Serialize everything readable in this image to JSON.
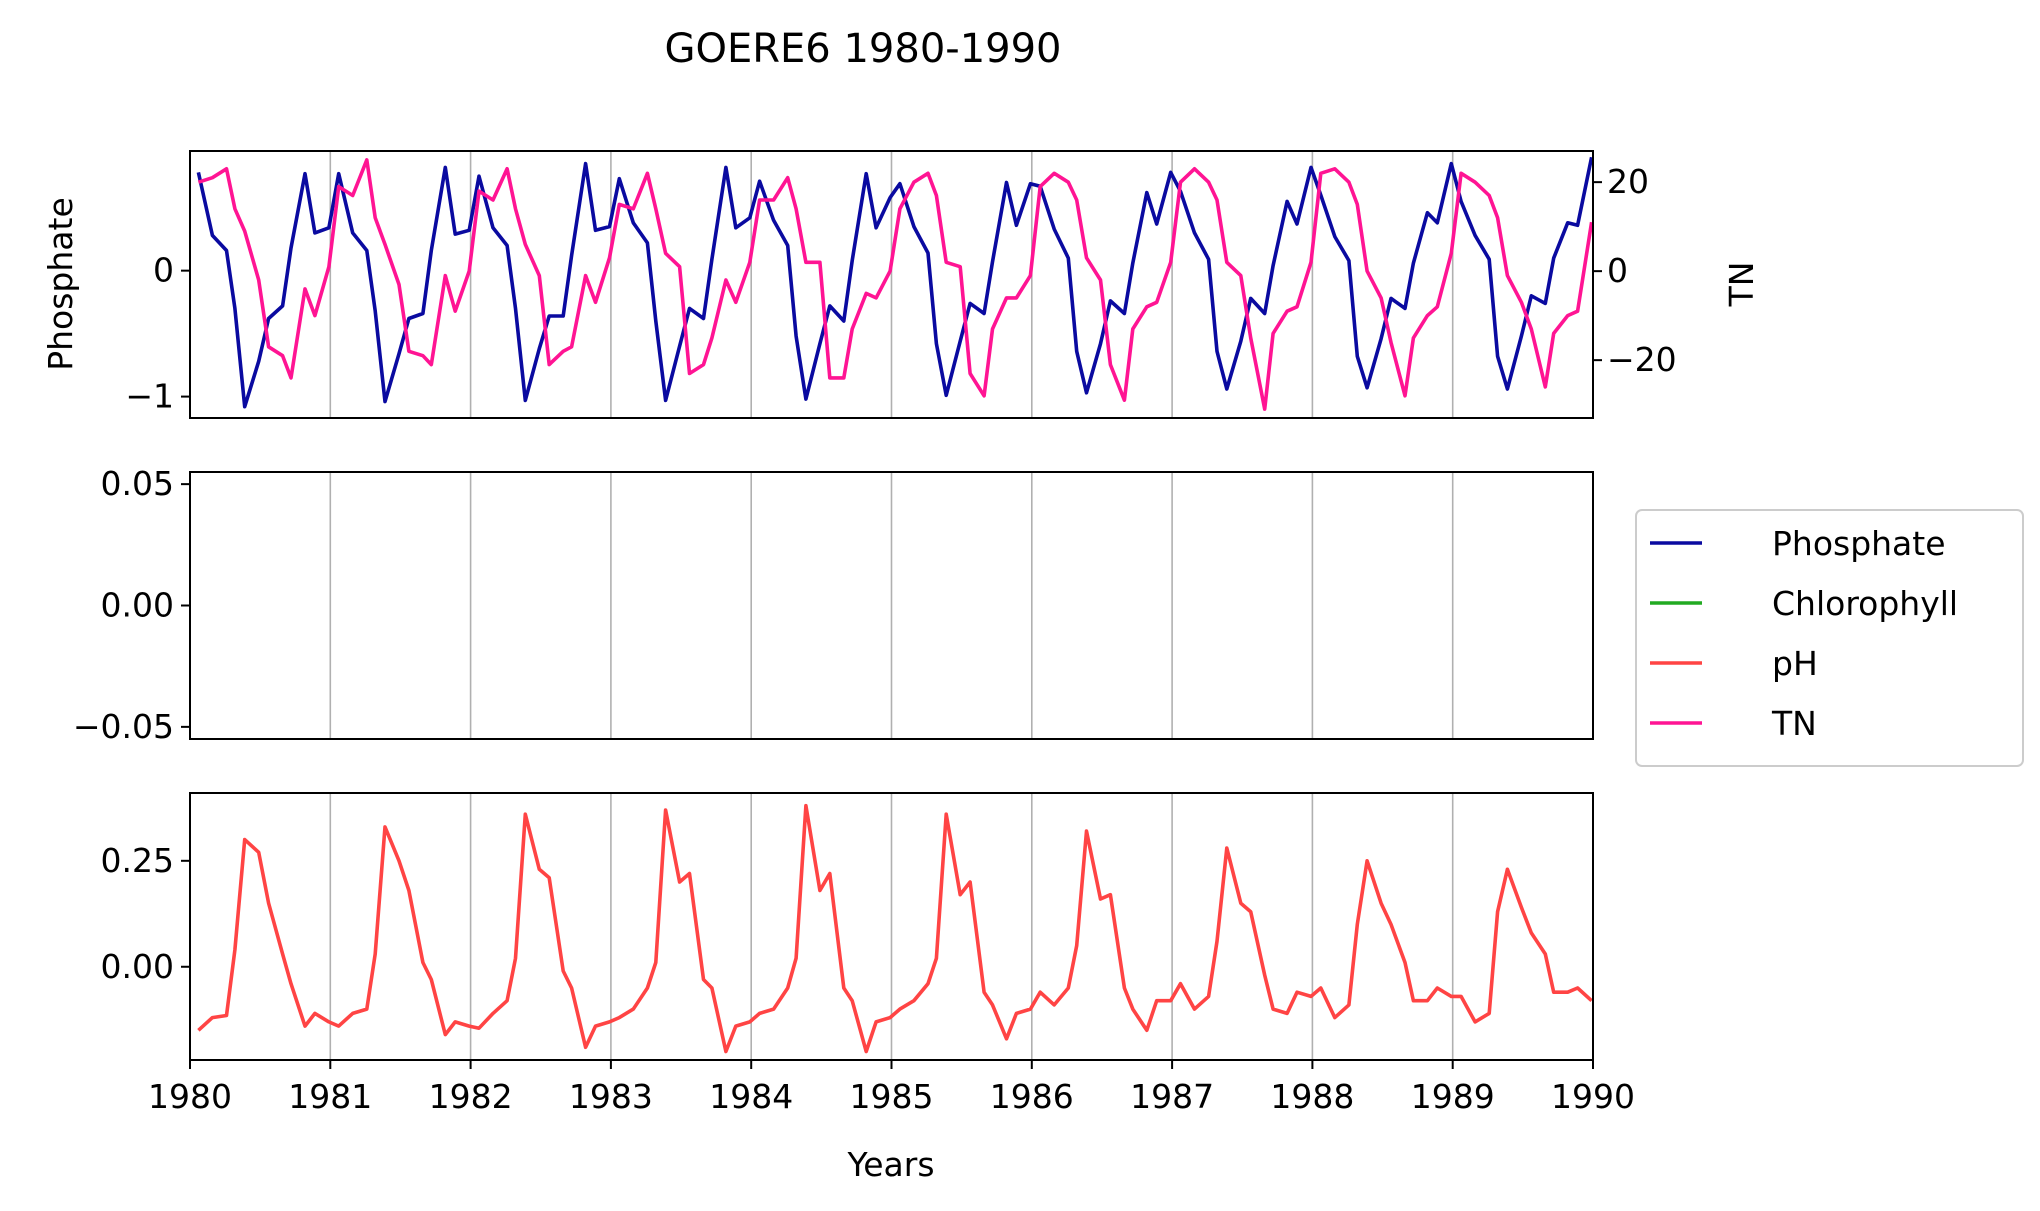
{
  "title": "GOERE6 1980-1990",
  "chart_data": [
    {
      "type": "line",
      "panel": "top",
      "ylabel": "Phosphate",
      "y2label": "TN",
      "xlim": [
        1980,
        1990
      ],
      "ylim": [
        -1.17,
        0.95
      ],
      "y2lim": [
        -33,
        27
      ],
      "yticks": [
        -1,
        0
      ],
      "ytick_labels": [
        "−1",
        "0"
      ],
      "y2ticks": [
        -20,
        0,
        20
      ],
      "y2tick_labels": [
        "−20",
        "0",
        "20"
      ],
      "series": [
        {
          "name": "Phosphate",
          "axis": "left",
          "color": "#0a0aa0",
          "x": [
            1980.06,
            1980.16,
            1980.26,
            1980.32,
            1980.39,
            1980.49,
            1980.56,
            1980.66,
            1980.72,
            1980.82,
            1980.89,
            1980.99,
            1981.06,
            1981.16,
            1981.26,
            1981.32,
            1981.39,
            1981.49,
            1981.56,
            1981.66,
            1981.72,
            1981.82,
            1981.89,
            1981.99,
            1982.06,
            1982.16,
            1982.26,
            1982.32,
            1982.39,
            1982.49,
            1982.56,
            1982.66,
            1982.72,
            1982.82,
            1982.89,
            1982.99,
            1983.06,
            1983.16,
            1983.26,
            1983.32,
            1983.39,
            1983.49,
            1983.56,
            1983.66,
            1983.72,
            1983.82,
            1983.89,
            1983.99,
            1984.06,
            1984.16,
            1984.26,
            1984.32,
            1984.39,
            1984.49,
            1984.56,
            1984.66,
            1984.72,
            1984.82,
            1984.89,
            1984.99,
            1985.06,
            1985.16,
            1985.26,
            1985.32,
            1985.39,
            1985.49,
            1985.56,
            1985.66,
            1985.72,
            1985.82,
            1985.89,
            1985.99,
            1986.06,
            1986.16,
            1986.26,
            1986.32,
            1986.39,
            1986.49,
            1986.56,
            1986.66,
            1986.72,
            1986.82,
            1986.89,
            1986.99,
            1987.06,
            1987.16,
            1987.26,
            1987.32,
            1987.39,
            1987.49,
            1987.56,
            1987.66,
            1987.72,
            1987.82,
            1987.89,
            1987.99,
            1988.06,
            1988.16,
            1988.26,
            1988.32,
            1988.39,
            1988.49,
            1988.56,
            1988.66,
            1988.72,
            1988.82,
            1988.89,
            1988.99,
            1989.06,
            1989.16,
            1989.26,
            1989.32,
            1989.39,
            1989.49,
            1989.56,
            1989.66,
            1989.72,
            1989.82,
            1989.89,
            1989.99
          ],
          "values": [
            0.78,
            0.28,
            0.16,
            -0.3,
            -1.08,
            -0.72,
            -0.38,
            -0.28,
            0.18,
            0.77,
            0.3,
            0.34,
            0.77,
            0.3,
            0.16,
            -0.32,
            -1.04,
            -0.66,
            -0.38,
            -0.34,
            0.16,
            0.82,
            0.29,
            0.32,
            0.75,
            0.34,
            0.2,
            -0.3,
            -1.03,
            -0.62,
            -0.36,
            -0.36,
            0.12,
            0.85,
            0.32,
            0.35,
            0.73,
            0.38,
            0.22,
            -0.4,
            -1.03,
            -0.6,
            -0.3,
            -0.38,
            0.09,
            0.82,
            0.34,
            0.42,
            0.71,
            0.4,
            0.2,
            -0.52,
            -1.02,
            -0.58,
            -0.28,
            -0.4,
            0.08,
            0.77,
            0.34,
            0.58,
            0.69,
            0.35,
            0.14,
            -0.58,
            -0.99,
            -0.56,
            -0.26,
            -0.34,
            0.07,
            0.7,
            0.36,
            0.69,
            0.67,
            0.33,
            0.1,
            -0.64,
            -0.97,
            -0.58,
            -0.24,
            -0.34,
            0.06,
            0.62,
            0.37,
            0.78,
            0.63,
            0.3,
            0.09,
            -0.64,
            -0.94,
            -0.56,
            -0.22,
            -0.34,
            0.04,
            0.55,
            0.37,
            0.82,
            0.6,
            0.27,
            0.08,
            -0.68,
            -0.93,
            -0.54,
            -0.22,
            -0.3,
            0.06,
            0.46,
            0.38,
            0.85,
            0.55,
            0.28,
            0.09,
            -0.68,
            -0.94,
            -0.52,
            -0.2,
            -0.26,
            0.1,
            0.38,
            0.36,
            0.9
          ]
        },
        {
          "name": "TN",
          "axis": "right",
          "color": "#ff1493",
          "x": [
            1980.06,
            1980.16,
            1980.26,
            1980.32,
            1980.39,
            1980.49,
            1980.56,
            1980.66,
            1980.72,
            1980.82,
            1980.89,
            1980.99,
            1981.06,
            1981.16,
            1981.26,
            1981.32,
            1981.39,
            1981.49,
            1981.56,
            1981.66,
            1981.72,
            1981.82,
            1981.89,
            1981.99,
            1982.06,
            1982.16,
            1982.26,
            1982.32,
            1982.39,
            1982.49,
            1982.56,
            1982.66,
            1982.72,
            1982.82,
            1982.89,
            1982.99,
            1983.06,
            1983.16,
            1983.26,
            1983.32,
            1983.39,
            1983.49,
            1983.56,
            1983.66,
            1983.72,
            1983.82,
            1983.89,
            1983.99,
            1984.06,
            1984.16,
            1984.26,
            1984.32,
            1984.39,
            1984.49,
            1984.56,
            1984.66,
            1984.72,
            1984.82,
            1984.89,
            1984.99,
            1985.06,
            1985.16,
            1985.26,
            1985.32,
            1985.39,
            1985.49,
            1985.56,
            1985.66,
            1985.72,
            1985.82,
            1985.89,
            1985.99,
            1986.06,
            1986.16,
            1986.26,
            1986.32,
            1986.39,
            1986.49,
            1986.56,
            1986.66,
            1986.72,
            1986.82,
            1986.89,
            1986.99,
            1987.06,
            1987.16,
            1987.26,
            1987.32,
            1987.39,
            1987.49,
            1987.56,
            1987.66,
            1987.72,
            1987.82,
            1987.89,
            1987.99,
            1988.06,
            1988.16,
            1988.26,
            1988.32,
            1988.39,
            1988.49,
            1988.56,
            1988.66,
            1988.72,
            1988.82,
            1988.89,
            1988.99,
            1989.06,
            1989.16,
            1989.26,
            1989.32,
            1989.39,
            1989.49,
            1989.56,
            1989.66,
            1989.72,
            1989.82,
            1989.89,
            1989.99
          ],
          "values": [
            20,
            21,
            23,
            14,
            9,
            -2,
            -17,
            -19,
            -24,
            -4,
            -10,
            1,
            19,
            17,
            25,
            12,
            6,
            -3,
            -18,
            -19,
            -21,
            -1,
            -9,
            0,
            18,
            16,
            23,
            14,
            6,
            -1,
            -21,
            -18,
            -17,
            -1,
            -7,
            3,
            15,
            14,
            22,
            14,
            4,
            1,
            -23,
            -21,
            -15,
            -2,
            -7,
            2,
            16,
            16,
            21,
            14,
            2,
            2,
            -24,
            -24,
            -13,
            -5,
            -6,
            0,
            14,
            20,
            22,
            17,
            2,
            1,
            -23,
            -28,
            -13,
            -6,
            -6,
            -1,
            19,
            22,
            20,
            16,
            3,
            -2,
            -21,
            -29,
            -13,
            -8,
            -7,
            2,
            20,
            23,
            20,
            16,
            2,
            -1,
            -15,
            -31,
            -14,
            -9,
            -8,
            2,
            22,
            23,
            20,
            15,
            0,
            -6,
            -16,
            -28,
            -15,
            -10,
            -8,
            4,
            22,
            20,
            17,
            12,
            -1,
            -7,
            -13,
            -26,
            -14,
            -10,
            -9,
            11
          ]
        }
      ]
    },
    {
      "type": "line",
      "panel": "middle",
      "xlim": [
        1980,
        1990
      ],
      "ylim": [
        -0.055,
        0.055
      ],
      "yticks": [
        -0.05,
        0,
        0.05
      ],
      "ytick_labels": [
        "−0.05",
        "0.00",
        "0.05"
      ],
      "series": [
        {
          "name": "Chlorophyll",
          "color": "#22aa22",
          "x": [],
          "values": []
        }
      ]
    },
    {
      "type": "line",
      "panel": "bottom",
      "xlabel": "Years",
      "xlim": [
        1980,
        1990
      ],
      "xticks": [
        1980,
        1981,
        1982,
        1983,
        1984,
        1985,
        1986,
        1987,
        1988,
        1989,
        1990
      ],
      "xtick_labels": [
        "1980",
        "1981",
        "1982",
        "1983",
        "1984",
        "1985",
        "1986",
        "1987",
        "1988",
        "1989",
        "1990"
      ],
      "ylim": [
        -0.22,
        0.41
      ],
      "yticks": [
        0,
        0.25
      ],
      "ytick_labels": [
        "0.00",
        "0.25"
      ],
      "series": [
        {
          "name": "pH",
          "color": "#ff4444",
          "x": [
            1980.06,
            1980.16,
            1980.26,
            1980.32,
            1980.39,
            1980.49,
            1980.56,
            1980.66,
            1980.72,
            1980.82,
            1980.89,
            1980.99,
            1981.06,
            1981.16,
            1981.26,
            1981.32,
            1981.39,
            1981.49,
            1981.56,
            1981.66,
            1981.72,
            1981.82,
            1981.89,
            1981.99,
            1982.06,
            1982.16,
            1982.26,
            1982.32,
            1982.39,
            1982.49,
            1982.56,
            1982.66,
            1982.72,
            1982.82,
            1982.89,
            1982.99,
            1983.06,
            1983.16,
            1983.26,
            1983.32,
            1983.39,
            1983.49,
            1983.56,
            1983.66,
            1983.72,
            1983.82,
            1983.89,
            1983.99,
            1984.06,
            1984.16,
            1984.26,
            1984.32,
            1984.39,
            1984.49,
            1984.56,
            1984.66,
            1984.72,
            1984.82,
            1984.89,
            1984.99,
            1985.06,
            1985.16,
            1985.26,
            1985.32,
            1985.39,
            1985.49,
            1985.56,
            1985.66,
            1985.72,
            1985.82,
            1985.89,
            1985.99,
            1986.06,
            1986.16,
            1986.26,
            1986.32,
            1986.39,
            1986.49,
            1986.56,
            1986.66,
            1986.72,
            1986.82,
            1986.89,
            1986.99,
            1987.06,
            1987.16,
            1987.26,
            1987.32,
            1987.39,
            1987.49,
            1987.56,
            1987.66,
            1987.72,
            1987.82,
            1987.89,
            1987.99,
            1988.06,
            1988.16,
            1988.26,
            1988.32,
            1988.39,
            1988.49,
            1988.56,
            1988.66,
            1988.72,
            1988.82,
            1988.89,
            1988.99,
            1989.06,
            1989.16,
            1989.26,
            1989.32,
            1989.39,
            1989.49,
            1989.56,
            1989.66,
            1989.72,
            1989.82,
            1989.89,
            1989.99
          ],
          "values": [
            -0.15,
            -0.12,
            -0.115,
            0.04,
            0.3,
            0.27,
            0.15,
            0.03,
            -0.04,
            -0.14,
            -0.11,
            -0.13,
            -0.14,
            -0.11,
            -0.1,
            0.03,
            0.33,
            0.25,
            0.18,
            0.01,
            -0.03,
            -0.16,
            -0.13,
            -0.14,
            -0.145,
            -0.11,
            -0.08,
            0.02,
            0.36,
            0.23,
            0.21,
            -0.01,
            -0.05,
            -0.19,
            -0.14,
            -0.13,
            -0.12,
            -0.1,
            -0.05,
            0.01,
            0.37,
            0.2,
            0.22,
            -0.03,
            -0.05,
            -0.2,
            -0.14,
            -0.13,
            -0.11,
            -0.1,
            -0.05,
            0.02,
            0.38,
            0.18,
            0.22,
            -0.05,
            -0.08,
            -0.2,
            -0.13,
            -0.12,
            -0.1,
            -0.08,
            -0.04,
            0.02,
            0.36,
            0.17,
            0.2,
            -0.06,
            -0.09,
            -0.17,
            -0.11,
            -0.1,
            -0.06,
            -0.09,
            -0.05,
            0.05,
            0.32,
            0.16,
            0.17,
            -0.05,
            -0.1,
            -0.15,
            -0.08,
            -0.08,
            -0.04,
            -0.1,
            -0.07,
            0.06,
            0.28,
            0.15,
            0.13,
            -0.02,
            -0.1,
            -0.11,
            -0.06,
            -0.07,
            -0.05,
            -0.12,
            -0.09,
            0.1,
            0.25,
            0.15,
            0.1,
            0.01,
            -0.08,
            -0.08,
            -0.05,
            -0.07,
            -0.07,
            -0.13,
            -0.11,
            0.13,
            0.23,
            0.14,
            0.08,
            0.03,
            -0.06,
            -0.06,
            -0.05,
            -0.08
          ]
        }
      ]
    }
  ],
  "legend": {
    "placement": "right-middle",
    "entries": [
      {
        "label": "Phosphate",
        "color": "#0a0aa0"
      },
      {
        "label": "Chlorophyll",
        "color": "#22aa22"
      },
      {
        "label": "pH",
        "color": "#ff4444"
      },
      {
        "label": "TN",
        "color": "#ff1493"
      }
    ]
  }
}
